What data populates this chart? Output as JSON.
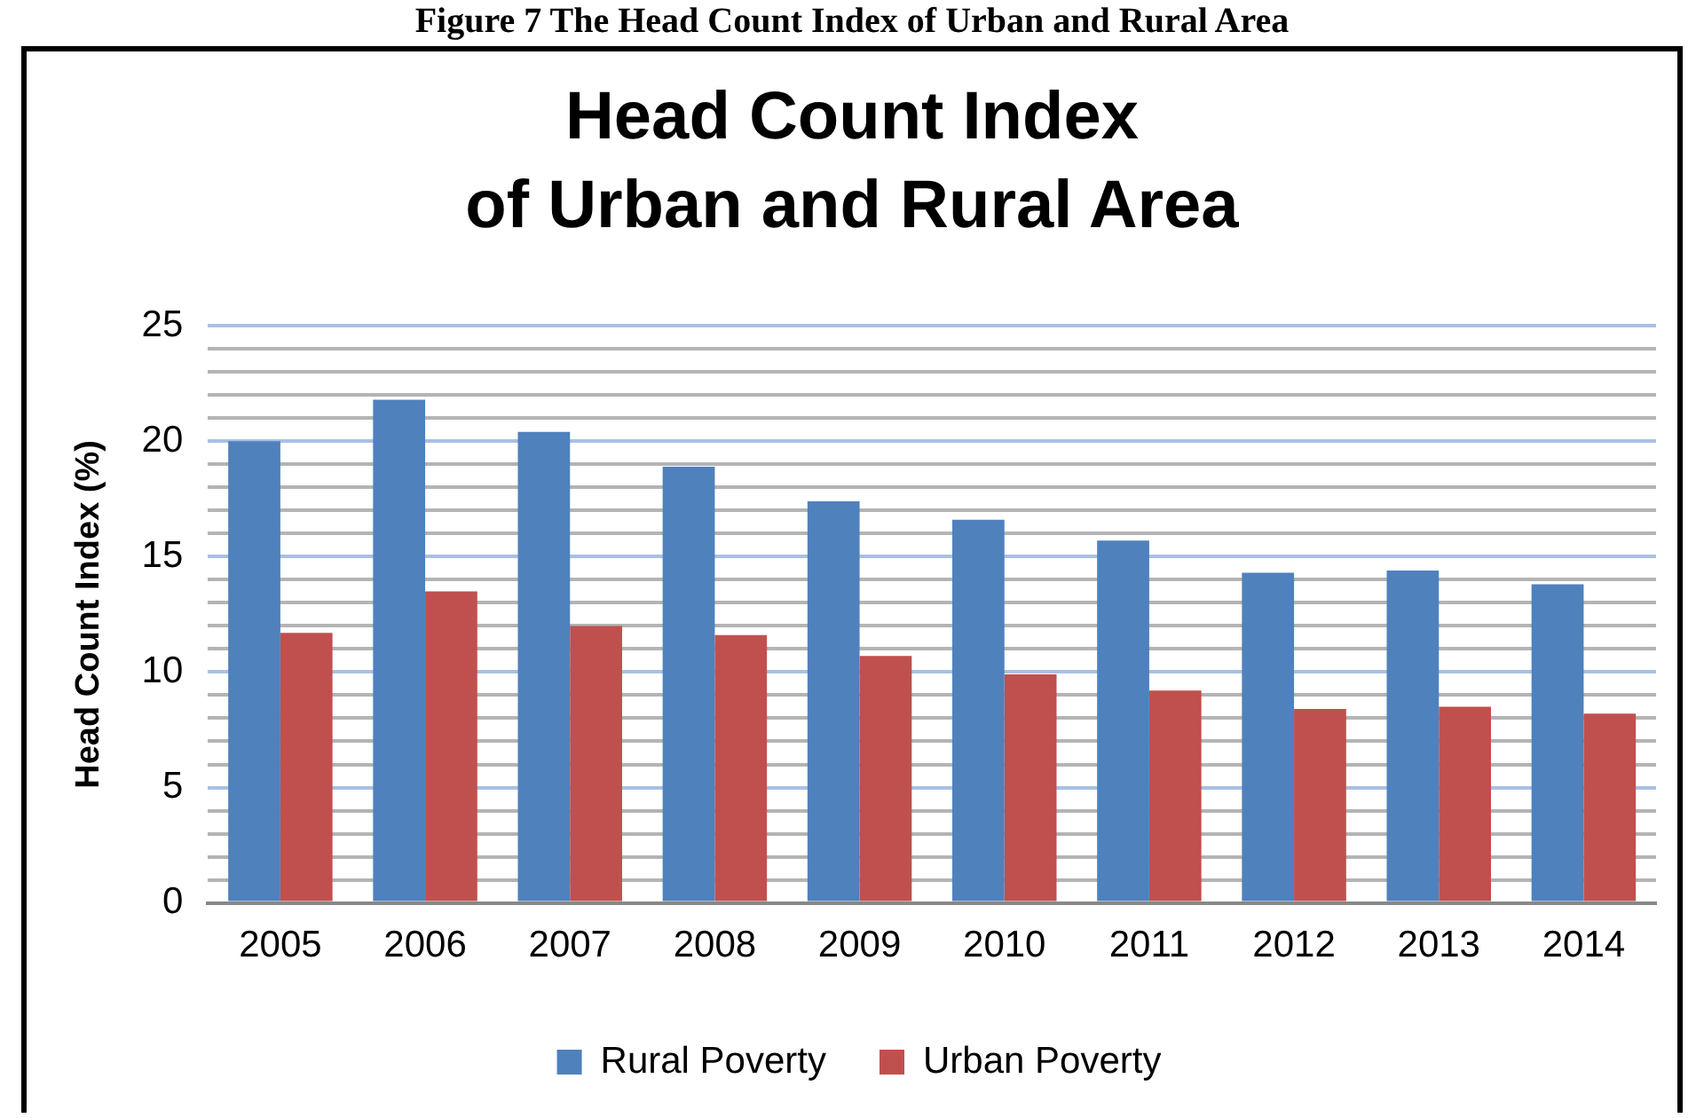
{
  "chart_data": {
    "type": "bar",
    "title": "Head Count Index\nof Urban and Rural Area",
    "ylabel": "Head Count Index (%)",
    "annotations": [
      "Figure 7 The Head Count Index of Urban and Rural Area"
    ],
    "categories": [
      "2005",
      "2006",
      "2007",
      "2008",
      "2009",
      "2010",
      "2011",
      "2012",
      "2013",
      "2014"
    ],
    "series": [
      {
        "name": "Rural Poverty",
        "color": "#4f81bd",
        "values": [
          20.0,
          21.8,
          20.4,
          18.9,
          17.4,
          16.6,
          15.7,
          14.3,
          14.4,
          13.8
        ]
      },
      {
        "name": "Urban Poverty",
        "color": "#c0504d",
        "values": [
          11.7,
          13.5,
          12.0,
          11.6,
          10.7,
          9.9,
          9.2,
          8.4,
          8.5,
          8.2
        ]
      }
    ],
    "ylim": [
      0,
      25
    ],
    "yticks": [
      0,
      {
        "value": 1,
        "label": null
      },
      {
        "value": 2,
        "label": null
      },
      {
        "value": 3,
        "label": null
      },
      {
        "value": 4,
        "label": null
      },
      5,
      {
        "value": 6,
        "label": null
      },
      {
        "value": 7,
        "label": null
      },
      {
        "value": 8,
        "label": null
      },
      {
        "value": 9,
        "label": null
      },
      10,
      {
        "value": 11,
        "label": null
      },
      {
        "value": 12,
        "label": null
      },
      {
        "value": 13,
        "label": null
      },
      {
        "value": 14,
        "label": null
      },
      15,
      {
        "value": 16,
        "label": null
      },
      {
        "value": 17,
        "label": null
      },
      {
        "value": 18,
        "label": null
      },
      {
        "value": 19,
        "label": null
      },
      20,
      {
        "value": 21,
        "label": null
      },
      {
        "value": 22,
        "label": null
      },
      {
        "value": 23,
        "label": null
      },
      {
        "value": 24,
        "label": null
      },
      25
    ],
    "grid": "y",
    "legend": "bottom"
  }
}
